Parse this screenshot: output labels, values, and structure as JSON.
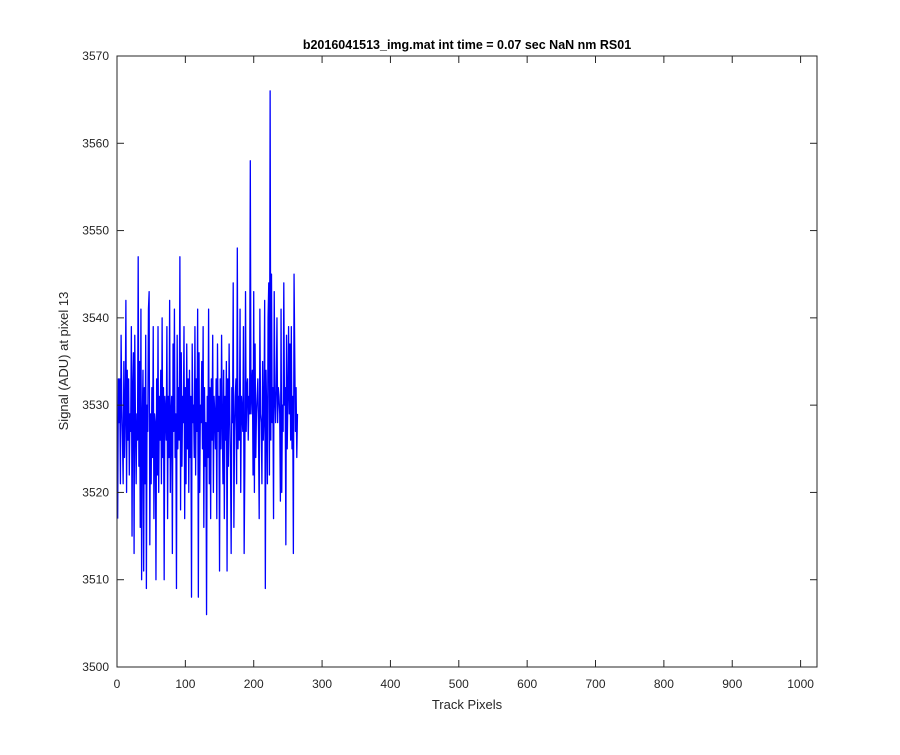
{
  "chart_data": {
    "type": "line",
    "title": "b2016041513_img.mat int time = 0.07 sec  NaN nm RS01",
    "xlabel": "Track Pixels",
    "ylabel": "Signal (ADU) at pixel 13",
    "xlim": [
      0,
      1024
    ],
    "ylim": [
      3500,
      3570
    ],
    "xticks": [
      0,
      100,
      200,
      300,
      400,
      500,
      600,
      700,
      800,
      900,
      1000
    ],
    "yticks": [
      3500,
      3510,
      3520,
      3530,
      3540,
      3550,
      3560,
      3570
    ],
    "grid": false,
    "line_color": "#0000ff",
    "series": [
      {
        "x_start": 1,
        "x_step": 1,
        "values": [
          3517,
          3533,
          3528,
          3533,
          3521,
          3538,
          3530,
          3526,
          3521,
          3535,
          3524,
          3529,
          3542,
          3520,
          3534,
          3526,
          3533,
          3522,
          3529,
          3527,
          3539,
          3515,
          3532,
          3536,
          3513,
          3538,
          3528,
          3521,
          3529,
          3526,
          3547,
          3523,
          3535,
          3516,
          3541,
          3510,
          3528,
          3534,
          3511,
          3532,
          3521,
          3538,
          3509,
          3530,
          3527,
          3541,
          3543,
          3514,
          3529,
          3521,
          3532,
          3524,
          3539,
          3517,
          3529,
          3528,
          3510,
          3533,
          3522,
          3539,
          3520,
          3531,
          3526,
          3534,
          3521,
          3540,
          3524,
          3532,
          3510,
          3531,
          3529,
          3526,
          3539,
          3517,
          3531,
          3524,
          3542,
          3520,
          3529,
          3531,
          3513,
          3537,
          3527,
          3541,
          3524,
          3529,
          3509,
          3538,
          3525,
          3532,
          3526,
          3547,
          3518,
          3536,
          3523,
          3531,
          3528,
          3539,
          3517,
          3532,
          3521,
          3537,
          3525,
          3533,
          3520,
          3534,
          3524,
          3531,
          3508,
          3537,
          3528,
          3530,
          3524,
          3539,
          3522,
          3533,
          3527,
          3541,
          3508,
          3536,
          3520,
          3530,
          3528,
          3535,
          3525,
          3539,
          3516,
          3532,
          3523,
          3528,
          3506,
          3531,
          3524,
          3541,
          3521,
          3532,
          3517,
          3533,
          3526,
          3538,
          3520,
          3531,
          3529,
          3525,
          3533,
          3517,
          3537,
          3527,
          3531,
          3511,
          3533,
          3525,
          3538,
          3528,
          3521,
          3534,
          3517,
          3531,
          3526,
          3535,
          3511,
          3533,
          3523,
          3537,
          3529,
          3524,
          3513,
          3532,
          3528,
          3544,
          3516,
          3527,
          3531,
          3533,
          3521,
          3548,
          3525,
          3531,
          3526,
          3541,
          3520,
          3531,
          3529,
          3527,
          3539,
          3513,
          3523,
          3543,
          3527,
          3532,
          3533,
          3526,
          3531,
          3529,
          3558,
          3529,
          3532,
          3534,
          3522,
          3543,
          3520,
          3537,
          3524,
          3529,
          3531,
          3533,
          3527,
          3517,
          3541,
          3529,
          3528,
          3521,
          3535,
          3526,
          3529,
          3542,
          3509,
          3534,
          3529,
          3521,
          3540,
          3544,
          3522,
          3566,
          3526,
          3545,
          3528,
          3532,
          3517,
          3543,
          3531,
          3528,
          3532,
          3540,
          3528,
          3532,
          3531,
          3529,
          3519,
          3541,
          3520,
          3530,
          3527,
          3544,
          3530,
          3532,
          3514,
          3538,
          3525,
          3531,
          3539,
          3529,
          3537,
          3526,
          3539,
          3525,
          3531,
          3513,
          3545,
          3536,
          3527,
          3532,
          3524,
          3529
        ]
      }
    ]
  }
}
